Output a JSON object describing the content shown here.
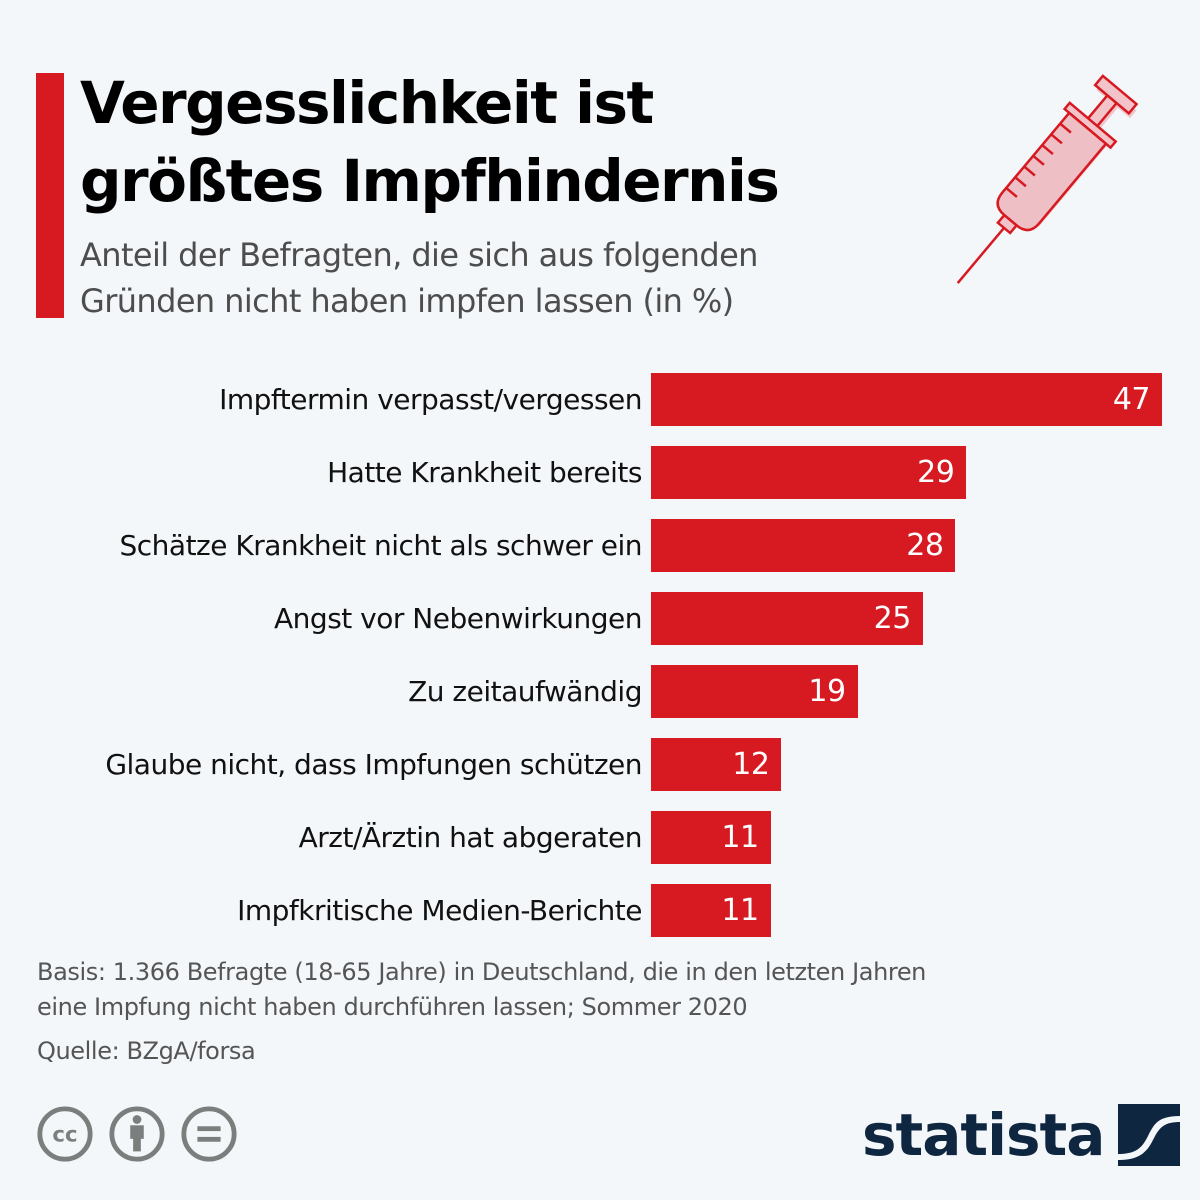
{
  "header": {
    "title_line1": "Vergesslichkeit ist",
    "title_line2": "größtes Impfhindernis",
    "subtitle_line1": "Anteil der Befragten, die sich aus folgenden",
    "subtitle_line2": "Gründen nicht haben impfen lassen (in %)",
    "accent_color": "#d71921",
    "illustration": "syringe-icon"
  },
  "chart_data": {
    "type": "bar",
    "orientation": "horizontal",
    "title": "Vergesslichkeit ist größtes Impfhindernis",
    "subtitle": "Anteil der Befragten, die sich aus folgenden Gründen nicht haben impfen lassen (in %)",
    "xlabel": "",
    "ylabel": "",
    "unit": "%",
    "xlim": [
      0,
      47
    ],
    "grid": false,
    "legend": "none",
    "bar_color": "#d71921",
    "value_label_color": "#ffffff",
    "categories": [
      "Impftermin verpasst/vergessen",
      "Hatte Krankheit bereits",
      "Schätze Krankheit nicht als schwer ein",
      "Angst vor Nebenwirkungen",
      "Zu zeitaufwändig",
      "Glaube nicht, dass Impfungen schützen",
      "Arzt/Ärztin hat abgeraten",
      "Impfkritische Medien-Berichte"
    ],
    "values": [
      47,
      29,
      28,
      25,
      19,
      12,
      11,
      11
    ]
  },
  "footer": {
    "note_line1": "Basis: 1.366 Befragte (18-65 Jahre) in Deutschland, die in den letzten Jahren",
    "note_line2": "eine Impfung nicht haben durchführen lassen; Sommer 2020",
    "source": "Quelle: BZgA/forsa",
    "license_icons": [
      "cc-icon",
      "attribution-icon",
      "no-derivatives-icon"
    ],
    "brand": "statista",
    "brand_color": "#0f2640",
    "license_color": "#7a7f7d"
  }
}
